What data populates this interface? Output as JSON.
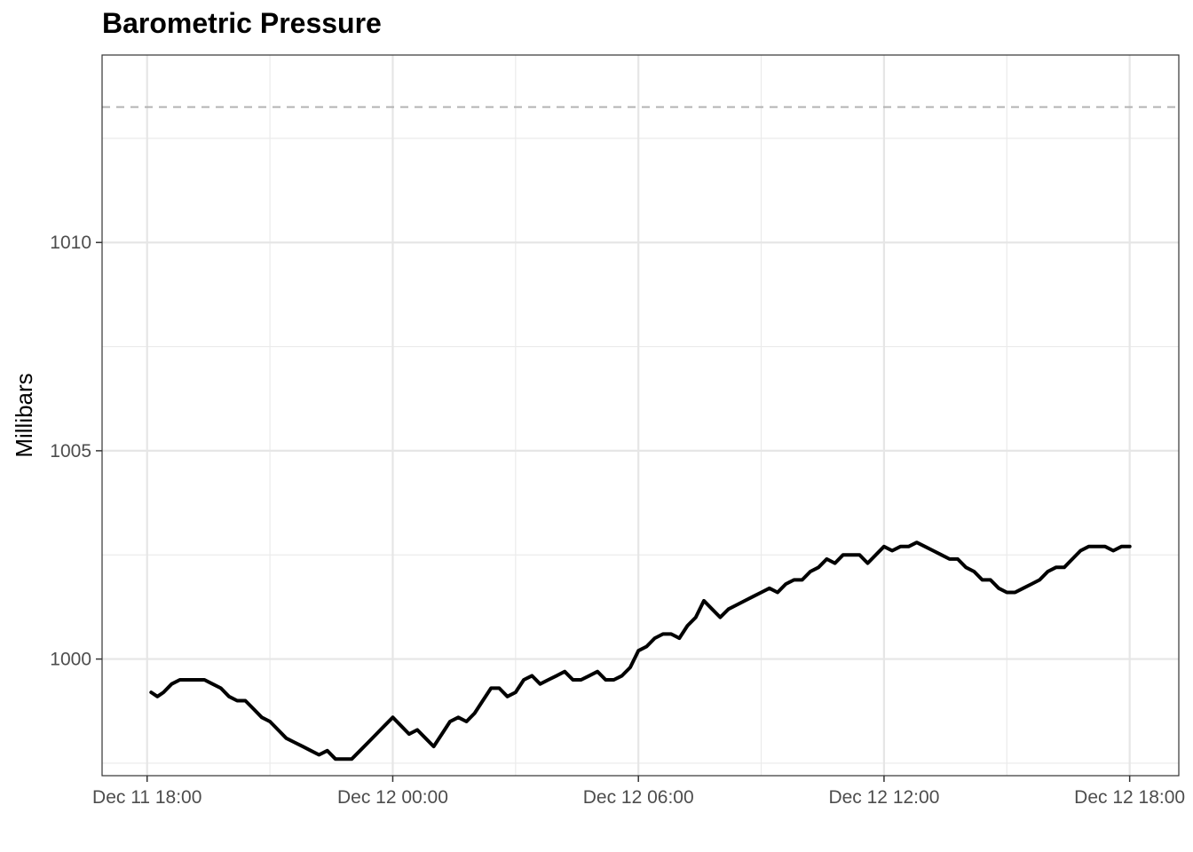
{
  "chart_data": {
    "type": "line",
    "title": "Barometric Pressure",
    "xlabel": "",
    "ylabel": "Millibars",
    "x_ticks": [
      "Dec 11 18:00",
      "Dec 12 00:00",
      "Dec 12 06:00",
      "Dec 12 12:00",
      "Dec 12 18:00"
    ],
    "x_tick_hours": [
      0,
      6,
      12,
      18,
      24
    ],
    "x_range_hours": [
      -1.1,
      25.2
    ],
    "y_ticks": [
      1000,
      1005,
      1010
    ],
    "ylim": [
      997.2,
      1014.5
    ],
    "reference_line": {
      "value": 1013.25,
      "style": "dashed",
      "color": "#b3b3b3"
    },
    "grid": true,
    "line_color": "#000000",
    "series": [
      {
        "x_hours": [
          0.1,
          0.25,
          0.4,
          0.6,
          0.8,
          1.0,
          1.2,
          1.4,
          1.6,
          1.8,
          2.0,
          2.2,
          2.4,
          2.6,
          2.8,
          3.0,
          3.2,
          3.4,
          3.6,
          3.8,
          4.0,
          4.2,
          4.4,
          4.6,
          4.8,
          5.0,
          5.2,
          5.4,
          5.6,
          5.8,
          6.0,
          6.2,
          6.4,
          6.6,
          6.8,
          7.0,
          7.2,
          7.4,
          7.6,
          7.8,
          8.0,
          8.2,
          8.4,
          8.6,
          8.8,
          9.0,
          9.2,
          9.4,
          9.6,
          9.8,
          10.0,
          10.2,
          10.4,
          10.6,
          10.8,
          11.0,
          11.2,
          11.4,
          11.6,
          11.8,
          12.0,
          12.2,
          12.4,
          12.6,
          12.8,
          13.0,
          13.2,
          13.4,
          13.6,
          13.8,
          14.0,
          14.2,
          14.4,
          14.6,
          14.8,
          15.0,
          15.2,
          15.4,
          15.6,
          15.8,
          16.0,
          16.2,
          16.4,
          16.6,
          16.8,
          17.0,
          17.2,
          17.4,
          17.6,
          17.8,
          18.0,
          18.2,
          18.4,
          18.6,
          18.8,
          19.0,
          19.2,
          19.4,
          19.6,
          19.8,
          20.0,
          20.2,
          20.4,
          20.6,
          20.8,
          21.0,
          21.2,
          21.4,
          21.6,
          21.8,
          22.0,
          22.2,
          22.4,
          22.6,
          22.8,
          23.0,
          23.2,
          23.4,
          23.6,
          23.8,
          24.0
        ],
        "values": [
          999.2,
          999.1,
          999.2,
          999.4,
          999.5,
          999.5,
          999.5,
          999.5,
          999.4,
          999.3,
          999.1,
          999.0,
          999.0,
          998.8,
          998.6,
          998.5,
          998.3,
          998.1,
          998.0,
          997.9,
          997.8,
          997.7,
          997.8,
          997.6,
          997.6,
          997.6,
          997.8,
          998.0,
          998.2,
          998.4,
          998.6,
          998.4,
          998.2,
          998.3,
          998.1,
          997.9,
          998.2,
          998.5,
          998.6,
          998.5,
          998.7,
          999.0,
          999.3,
          999.3,
          999.1,
          999.2,
          999.5,
          999.6,
          999.4,
          999.5,
          999.6,
          999.7,
          999.5,
          999.5,
          999.6,
          999.7,
          999.5,
          999.5,
          999.6,
          999.8,
          1000.2,
          1000.3,
          1000.5,
          1000.6,
          1000.6,
          1000.5,
          1000.8,
          1001.0,
          1001.4,
          1001.2,
          1001.0,
          1001.2,
          1001.3,
          1001.4,
          1001.5,
          1001.6,
          1001.7,
          1001.6,
          1001.8,
          1001.9,
          1001.9,
          1002.1,
          1002.2,
          1002.4,
          1002.3,
          1002.5,
          1002.5,
          1002.5,
          1002.3,
          1002.5,
          1002.7,
          1002.6,
          1002.7,
          1002.7,
          1002.8,
          1002.7,
          1002.6,
          1002.5,
          1002.4,
          1002.4,
          1002.2,
          1002.1,
          1001.9,
          1001.9,
          1001.7,
          1001.6,
          1001.6,
          1001.7,
          1001.8,
          1001.9,
          1002.1,
          1002.2,
          1002.2,
          1002.4,
          1002.6,
          1002.7,
          1002.7,
          1002.7,
          1002.6,
          1002.7,
          1002.7
        ]
      }
    ]
  }
}
